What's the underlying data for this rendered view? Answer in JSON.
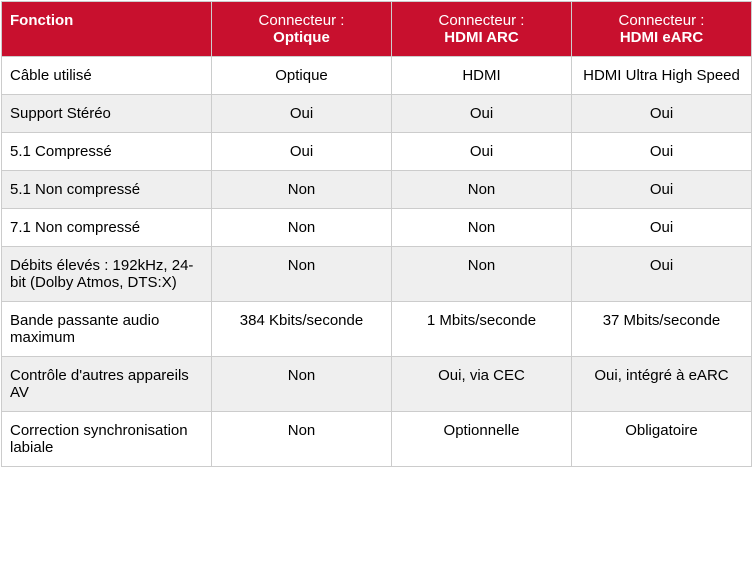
{
  "colors": {
    "header_bg": "#c8102e",
    "header_fg": "#ffffff",
    "border": "#cccccc",
    "alt_row_bg": "#efefef",
    "row_bg": "#ffffff",
    "text": "#000000"
  },
  "header": {
    "fonction": "Fonction",
    "conn_prefix": "Connecteur :",
    "optique": "Optique",
    "hdmi_arc": "HDMI ARC",
    "hdmi_earc": "HDMI eARC"
  },
  "rows": [
    {
      "fn": "Câble utilisé",
      "c1": "Optique",
      "c2": "HDMI",
      "c3": "HDMI Ultra High Speed",
      "alt": false
    },
    {
      "fn": "Support Stéréo",
      "c1": "Oui",
      "c2": "Oui",
      "c3": "Oui",
      "alt": true
    },
    {
      "fn": "5.1 Compressé",
      "c1": "Oui",
      "c2": "Oui",
      "c3": "Oui",
      "alt": false
    },
    {
      "fn": "5.1 Non compressé",
      "c1": "Non",
      "c2": "Non",
      "c3": "Oui",
      "alt": true
    },
    {
      "fn": "7.1 Non compressé",
      "c1": "Non",
      "c2": "Non",
      "c3": "Oui",
      "alt": false
    },
    {
      "fn": "Débits élevés : 192kHz, 24-bit (Dolby Atmos, DTS:X)",
      "c1": "Non",
      "c2": "Non",
      "c3": "Oui",
      "alt": true
    },
    {
      "fn": "Bande passante audio maximum",
      "c1": "384 Kbits/seconde",
      "c2": "1 Mbits/seconde",
      "c3": "37 Mbits/seconde",
      "alt": false
    },
    {
      "fn": "Contrôle d'autres appareils AV",
      "c1": "Non",
      "c2": "Oui, via CEC",
      "c3": "Oui, intégré à eARC",
      "alt": true
    },
    {
      "fn": "Correction synchronisation labiale",
      "c1": "Non",
      "c2": "Optionnelle",
      "c3": "Obligatoire",
      "alt": false
    }
  ]
}
